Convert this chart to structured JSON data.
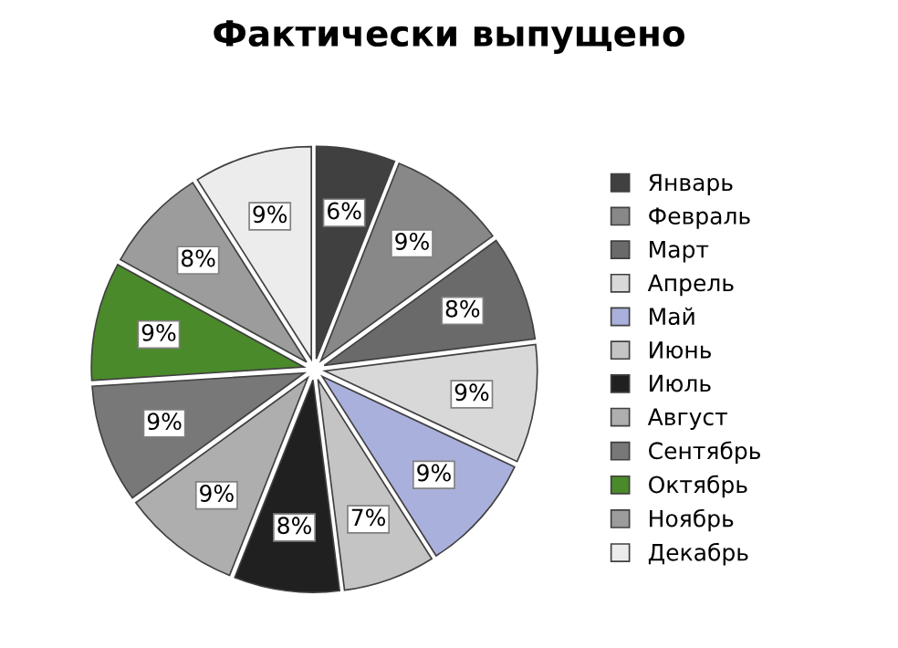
{
  "chart_data": {
    "type": "pie",
    "title": "Фактически выпущено",
    "categories": [
      "Январь",
      "Февраль",
      "Март",
      "Апрель",
      "Май",
      "Июнь",
      "Июль",
      "Август",
      "Сентябрь",
      "Октябрь",
      "Ноябрь",
      "Декабрь"
    ],
    "values": [
      6,
      9,
      8,
      9,
      9,
      7,
      8,
      9,
      9,
      9,
      8,
      9
    ],
    "value_labels": [
      "6%",
      "9%",
      "8%",
      "9%",
      "9%",
      "7%",
      "8%",
      "9%",
      "9%",
      "9%",
      "8%",
      "9%"
    ],
    "colors": [
      "#404040",
      "#888888",
      "#6a6a6a",
      "#d8d8d8",
      "#aab0dc",
      "#c4c4c4",
      "#202020",
      "#aeaeae",
      "#787878",
      "#4a8a2a",
      "#9c9c9c",
      "#ececec"
    ],
    "legend": "right"
  }
}
